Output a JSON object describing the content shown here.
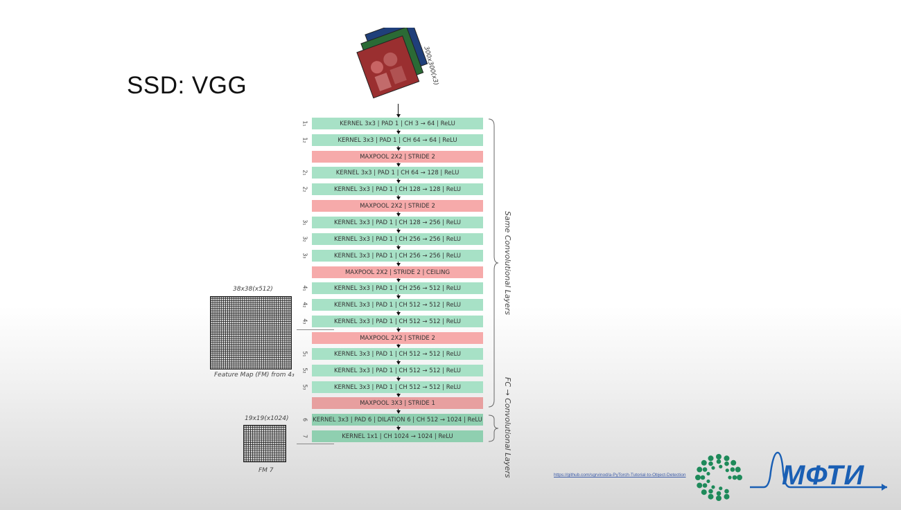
{
  "slide": {
    "title": "SSD: VGG",
    "input_label": "300x300(x3)",
    "link": "https://github.com/sgrvinod/a-PyTorch-Tutorial-to-Object-Detection",
    "brand_text": "МФТИ"
  },
  "layers": [
    {
      "idx": "1₁",
      "text": "KERNEL 3x3 | PAD 1 | CH  3 → 64 | ReLU",
      "kind": "conv"
    },
    {
      "idx": "1₂",
      "text": "KERNEL 3x3 | PAD 1 | CH  64 → 64 | ReLU",
      "kind": "conv"
    },
    {
      "idx": "",
      "text": "MAXPOOL 2X2 | STRIDE 2",
      "kind": "pool"
    },
    {
      "idx": "2₁",
      "text": "KERNEL 3x3 | PAD 1 | CH  64 → 128 | ReLU",
      "kind": "conv"
    },
    {
      "idx": "2₂",
      "text": "KERNEL 3x3 | PAD 1 | CH  128 → 128 | ReLU",
      "kind": "conv"
    },
    {
      "idx": "",
      "text": "MAXPOOL 2X2 | STRIDE 2",
      "kind": "pool"
    },
    {
      "idx": "3₁",
      "text": "KERNEL 3x3 | PAD 1 | CH  128 → 256 | ReLU",
      "kind": "conv"
    },
    {
      "idx": "3₂",
      "text": "KERNEL 3x3 | PAD 1 | CH  256 → 256 | ReLU",
      "kind": "conv"
    },
    {
      "idx": "3₃",
      "text": "KERNEL 3x3 | PAD 1 | CH  256 → 256 | ReLU",
      "kind": "conv"
    },
    {
      "idx": "",
      "text": "MAXPOOL 2X2 | STRIDE 2 | CEILING",
      "kind": "pool"
    },
    {
      "idx": "4₁",
      "text": "KERNEL 3x3 | PAD 1 | CH  256 → 512 | ReLU",
      "kind": "conv"
    },
    {
      "idx": "4₂",
      "text": "KERNEL 3x3 | PAD 1 | CH  512 → 512 | ReLU",
      "kind": "conv"
    },
    {
      "idx": "4₃",
      "text": "KERNEL 3x3 | PAD 1 | CH  512 → 512 | ReLU",
      "kind": "conv"
    },
    {
      "idx": "",
      "text": "MAXPOOL 2X2 | STRIDE 2",
      "kind": "pool"
    },
    {
      "idx": "5₁",
      "text": "KERNEL 3x3 | PAD 1 | CH  512 → 512 | ReLU",
      "kind": "conv"
    },
    {
      "idx": "5₂",
      "text": "KERNEL 3x3 | PAD 1 | CH  512 → 512 | ReLU",
      "kind": "conv"
    },
    {
      "idx": "5₃",
      "text": "KERNEL 3x3 | PAD 1 | CH  512 → 512 | ReLU",
      "kind": "conv"
    },
    {
      "idx": "",
      "text": "MAXPOOL 3X3 | STRIDE 1",
      "kind": "pool-dark"
    },
    {
      "idx": "6",
      "text": "KERNEL 3x3 | PAD 6 | DILATION 6 | CH  512 → 1024 | ReLU",
      "kind": "conv-dark"
    },
    {
      "idx": "7",
      "text": "KERNEL 1x1 | CH  1024 → 1024 | ReLU",
      "kind": "conv-dark"
    }
  ],
  "braces": {
    "same_conv": "Same Convolutional Layers",
    "fc_conv": "FC → Convolutional Layers"
  },
  "feature_maps": {
    "fm4": {
      "top_label": "38x38(x512)",
      "caption": "Feature Map (FM) from 4₃"
    },
    "fm7": {
      "top_label": "19x19(x1024)",
      "caption": "FM 7"
    }
  },
  "colors": {
    "conv": "#a7e1c6",
    "pool": "#f6aaaa",
    "brand_blue": "#1a5fb4",
    "brand_green": "#1e8a5a"
  }
}
